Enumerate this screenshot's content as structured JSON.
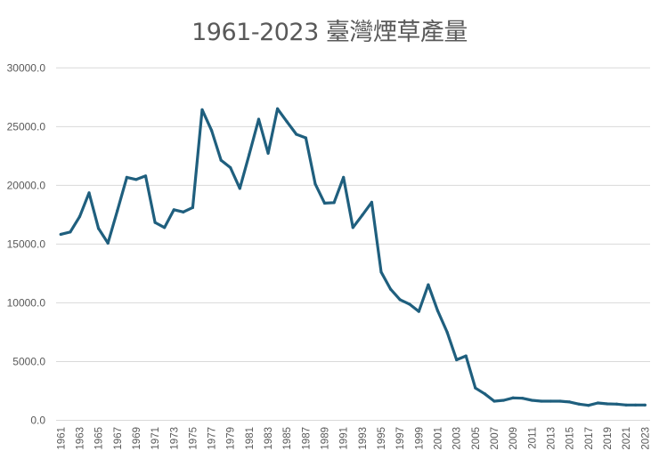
{
  "chart_data": {
    "type": "line",
    "title": "1961-2023 臺灣煙草產量",
    "xlabel": "",
    "ylabel": "",
    "ylim": [
      0,
      30000
    ],
    "yticks": [
      "0.0",
      "5000.0",
      "10000.0",
      "15000.0",
      "20000.0",
      "25000.0",
      "30000.0"
    ],
    "ytick_values": [
      0,
      5000,
      10000,
      15000,
      20000,
      25000,
      30000
    ],
    "xtick_labels": [
      "1961",
      "1963",
      "1965",
      "1967",
      "1969",
      "1971",
      "1973",
      "1975",
      "1977",
      "1979",
      "1981",
      "1983",
      "1985",
      "1987",
      "1989",
      "1991",
      "1993",
      "1995",
      "1997",
      "1999",
      "2001",
      "2003",
      "2005",
      "2007",
      "2009",
      "2011",
      "2013",
      "2015",
      "2017",
      "2019",
      "2021",
      "2023"
    ],
    "grid": "horizontal",
    "legend": "none",
    "line_color": "#1f5f7e",
    "x": [
      1961,
      1962,
      1963,
      1964,
      1965,
      1966,
      1967,
      1968,
      1969,
      1970,
      1971,
      1972,
      1973,
      1974,
      1975,
      1976,
      1977,
      1978,
      1979,
      1980,
      1981,
      1982,
      1983,
      1984,
      1985,
      1986,
      1987,
      1988,
      1989,
      1990,
      1991,
      1992,
      1993,
      1994,
      1995,
      1996,
      1997,
      1998,
      1999,
      2000,
      2001,
      2002,
      2003,
      2004,
      2005,
      2006,
      2007,
      2008,
      2009,
      2010,
      2011,
      2012,
      2013,
      2014,
      2015,
      2016,
      2017,
      2018,
      2019,
      2020,
      2021,
      2022,
      2023
    ],
    "values": [
      15830,
      16030,
      17350,
      19360,
      16330,
      15080,
      17850,
      20680,
      20500,
      20800,
      16840,
      16410,
      17920,
      17730,
      18110,
      26440,
      24670,
      22140,
      21510,
      19740,
      22650,
      25630,
      22730,
      26520,
      25420,
      24340,
      24040,
      20120,
      18480,
      18530,
      20680,
      16410,
      17470,
      18560,
      12620,
      11160,
      10270,
      9890,
      9270,
      11540,
      9320,
      7500,
      5150,
      5480,
      2750,
      2250,
      1630,
      1700,
      1910,
      1880,
      1700,
      1630,
      1630,
      1630,
      1560,
      1380,
      1270,
      1480,
      1400,
      1380,
      1300,
      1300,
      1300
    ]
  }
}
